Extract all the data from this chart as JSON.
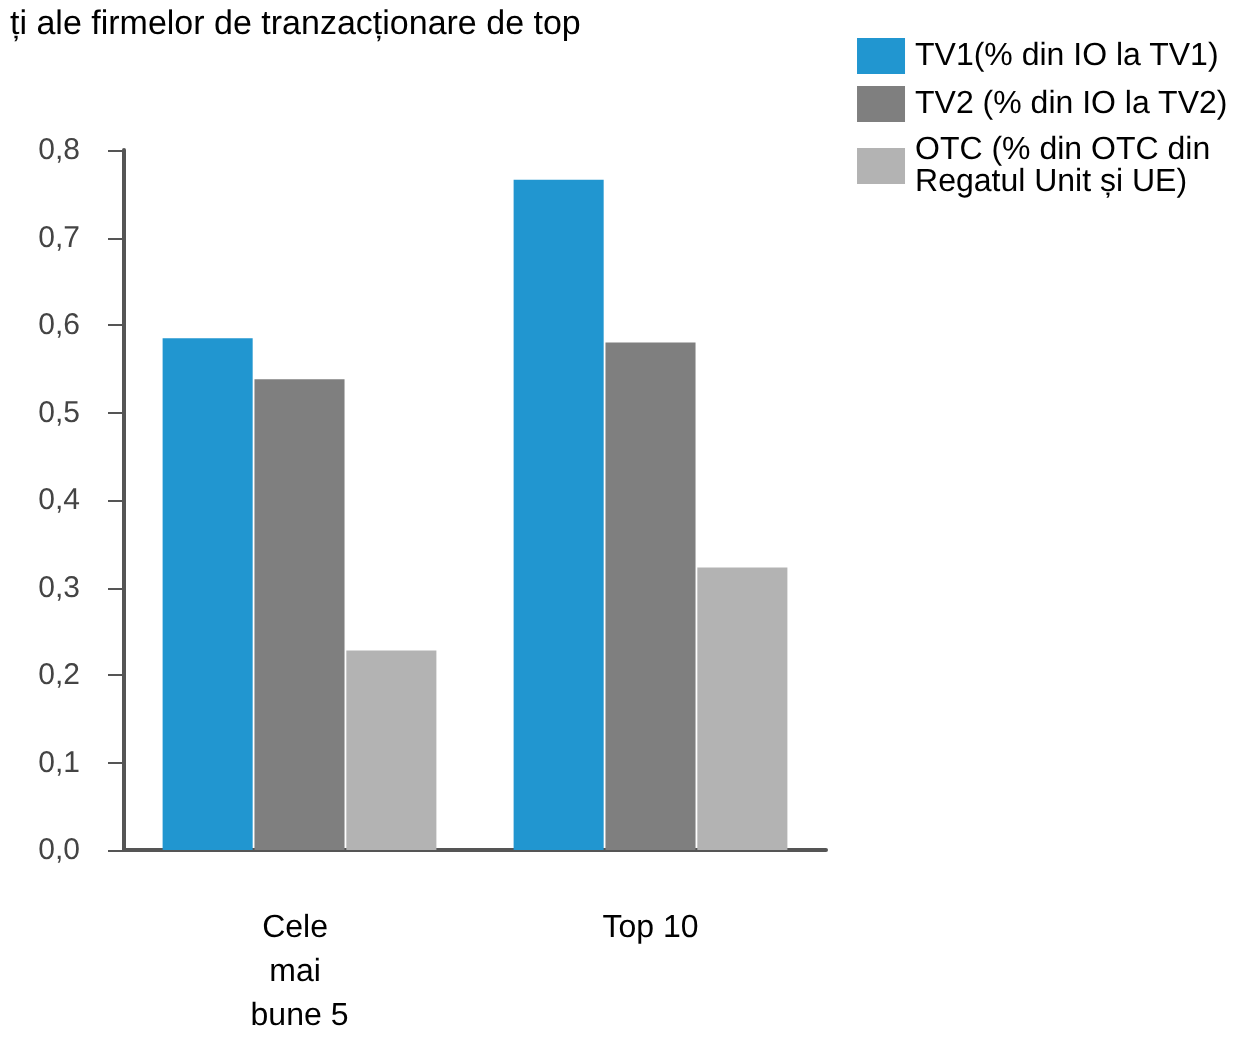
{
  "chart_data": {
    "type": "bar",
    "title": "ți ale firmelor de tranzacționare de top",
    "categories": [
      "Cele mai bune 5",
      "Top 10"
    ],
    "series": [
      {
        "name": "TV1(% din IO la TV1)",
        "color": "#2196d0",
        "values": [
          0.585,
          0.766
        ]
      },
      {
        "name": "TV2 (% din IO la TV2)",
        "color": "#7f7f7f",
        "values": [
          0.538,
          0.58
        ]
      },
      {
        "name": "OTC (% din OTC din Regatul Unit și UE)",
        "color": "#b3b3b3",
        "values": [
          0.228,
          0.323
        ]
      }
    ],
    "ylim": [
      0,
      0.8
    ],
    "yticks": [
      {
        "value": 0,
        "label": "0,0"
      },
      {
        "value": 0.1,
        "label": "0,1"
      },
      {
        "value": 0.2,
        "label": "0,2"
      },
      {
        "value": 0.3,
        "label": "0,3"
      },
      {
        "value": 0.4,
        "label": "0,4"
      },
      {
        "value": 0.5,
        "label": "0,5"
      },
      {
        "value": 0.6,
        "label": "0,6"
      },
      {
        "value": 0.7,
        "label": "0,7"
      },
      {
        "value": 0.8,
        "label": "0,8"
      }
    ],
    "grid": false,
    "legend": "top right"
  }
}
